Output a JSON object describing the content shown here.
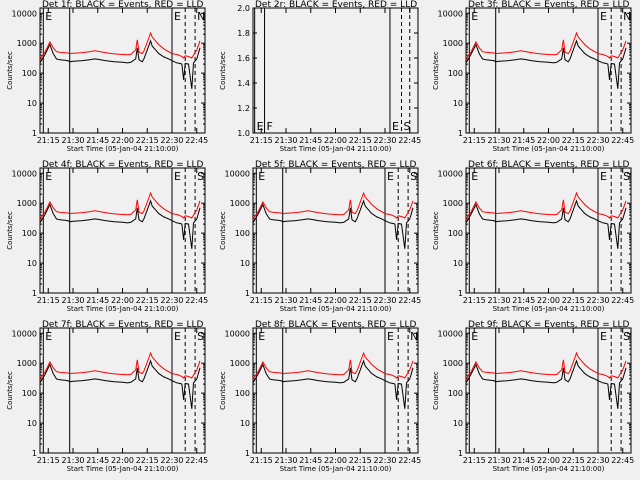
{
  "chart_data": {
    "type": "line",
    "layout": "3x3 grid of panels",
    "xlabel": "Start Time (05-Jan-04 21:10:00)",
    "x_tick_labels": [
      "21:15",
      "21:30",
      "21:45",
      "22:00",
      "22:15",
      "22:30",
      "22:45"
    ],
    "x_range": [
      "21:10",
      "22:50"
    ],
    "ylabel": "Counts/sec",
    "y_scale": "log",
    "y_tick_labels": [
      "1",
      "10",
      "100",
      "1000",
      "10000"
    ],
    "y_range": [
      1,
      15000
    ],
    "colors": {
      "events": "#000000",
      "lld": "#ff0000"
    },
    "panels": [
      {
        "title": "Det 1f: BLACK = Events, RED = LLD",
        "has_data": true,
        "vlines": [
          {
            "t": "21:12",
            "style": "solid",
            "label": "E"
          },
          {
            "t": "21:28",
            "style": "solid",
            "label": ""
          },
          {
            "t": "22:30",
            "style": "solid",
            "label": "E"
          },
          {
            "t": "22:38",
            "style": "dashed",
            "label": ""
          },
          {
            "t": "22:44",
            "style": "dashed",
            "label": "N"
          }
        ]
      },
      {
        "title": "Det 2r: BLACK = Events, RED = LLD",
        "has_data": false,
        "y_tick_labels": [
          "1.0",
          "1.2",
          "1.4",
          "1.6",
          "1.8",
          "2.0"
        ],
        "y_range": [
          1,
          2
        ],
        "vlines": [
          {
            "t": "21:11",
            "style": "solid",
            "label": "E"
          },
          {
            "t": "21:17",
            "style": "solid",
            "label": "F"
          },
          {
            "t": "22:33",
            "style": "solid",
            "label": "E"
          },
          {
            "t": "22:40",
            "style": "dashed",
            "label": "S"
          },
          {
            "t": "22:45",
            "style": "dashed",
            "label": ""
          }
        ]
      },
      {
        "title": "Det 3f: BLACK = Events, RED = LLD",
        "has_data": true,
        "vlines": [
          {
            "t": "21:12",
            "style": "solid",
            "label": "E"
          },
          {
            "t": "21:28",
            "style": "solid",
            "label": ""
          },
          {
            "t": "22:30",
            "style": "solid",
            "label": "E"
          },
          {
            "t": "22:38",
            "style": "dashed",
            "label": ""
          },
          {
            "t": "22:44",
            "style": "dashed",
            "label": "N"
          }
        ]
      },
      {
        "title": "Det 4f: BLACK = Events, RED = LLD",
        "has_data": true,
        "vlines": [
          {
            "t": "21:12",
            "style": "solid",
            "label": "E"
          },
          {
            "t": "21:28",
            "style": "solid",
            "label": ""
          },
          {
            "t": "22:30",
            "style": "solid",
            "label": "E"
          },
          {
            "t": "22:38",
            "style": "dashed",
            "label": ""
          },
          {
            "t": "22:44",
            "style": "dashed",
            "label": "S"
          }
        ]
      },
      {
        "title": "Det 5f: BLACK = Events, RED = LLD",
        "has_data": true,
        "vlines": [
          {
            "t": "21:12",
            "style": "solid",
            "label": "E"
          },
          {
            "t": "21:28",
            "style": "solid",
            "label": ""
          },
          {
            "t": "22:30",
            "style": "solid",
            "label": "E"
          },
          {
            "t": "22:38",
            "style": "dashed",
            "label": ""
          },
          {
            "t": "22:44",
            "style": "dashed",
            "label": "S"
          }
        ]
      },
      {
        "title": "Det 6f: BLACK = Events, RED = LLD",
        "has_data": true,
        "vlines": [
          {
            "t": "21:12",
            "style": "solid",
            "label": "E"
          },
          {
            "t": "21:28",
            "style": "solid",
            "label": ""
          },
          {
            "t": "22:30",
            "style": "solid",
            "label": "E"
          },
          {
            "t": "22:38",
            "style": "dashed",
            "label": ""
          },
          {
            "t": "22:44",
            "style": "dashed",
            "label": "S"
          }
        ]
      },
      {
        "title": "Det 7f: BLACK = Events, RED = LLD",
        "has_data": true,
        "vlines": [
          {
            "t": "21:12",
            "style": "solid",
            "label": "E"
          },
          {
            "t": "21:28",
            "style": "solid",
            "label": ""
          },
          {
            "t": "22:30",
            "style": "solid",
            "label": "E"
          },
          {
            "t": "22:38",
            "style": "dashed",
            "label": ""
          },
          {
            "t": "22:44",
            "style": "dashed",
            "label": "S"
          }
        ]
      },
      {
        "title": "Det 8f: BLACK = Events, RED = LLD",
        "has_data": true,
        "vlines": [
          {
            "t": "21:12",
            "style": "solid",
            "label": "E"
          },
          {
            "t": "21:28",
            "style": "solid",
            "label": ""
          },
          {
            "t": "22:30",
            "style": "solid",
            "label": "E"
          },
          {
            "t": "22:38",
            "style": "dashed",
            "label": ""
          },
          {
            "t": "22:44",
            "style": "dashed",
            "label": "N"
          }
        ]
      },
      {
        "title": "Det 9f: BLACK = Events, RED = LLD",
        "has_data": true,
        "vlines": [
          {
            "t": "21:12",
            "style": "solid",
            "label": "E"
          },
          {
            "t": "21:28",
            "style": "solid",
            "label": ""
          },
          {
            "t": "22:30",
            "style": "solid",
            "label": "E"
          },
          {
            "t": "22:38",
            "style": "dashed",
            "label": ""
          },
          {
            "t": "22:44",
            "style": "dashed",
            "label": "S"
          }
        ]
      }
    ],
    "series_profile": {
      "times": [
        "21:10",
        "21:13",
        "21:16",
        "21:18",
        "21:20",
        "21:22",
        "21:25",
        "21:27",
        "21:28",
        "21:30",
        "21:35",
        "21:40",
        "21:43",
        "21:45",
        "21:50",
        "21:55",
        "22:00",
        "22:03",
        "22:05",
        "22:08",
        "22:09",
        "22:10",
        "22:12",
        "22:13",
        "22:15",
        "22:17",
        "22:18",
        "22:20",
        "22:22",
        "22:25",
        "22:28",
        "22:30",
        "22:33",
        "22:35",
        "22:36",
        "22:37",
        "22:38",
        "22:40",
        "22:42",
        "22:43",
        "22:45",
        "22:47"
      ],
      "events": [
        220,
        420,
        900,
        450,
        300,
        280,
        270,
        260,
        240,
        250,
        260,
        280,
        300,
        290,
        260,
        240,
        230,
        220,
        230,
        300,
        700,
        280,
        240,
        300,
        600,
        1200,
        800,
        600,
        450,
        350,
        300,
        260,
        220,
        210,
        200,
        60,
        210,
        200,
        30,
        220,
        300,
        700
      ],
      "lld": [
        300,
        500,
        1100,
        700,
        520,
        500,
        480,
        470,
        450,
        460,
        480,
        520,
        560,
        540,
        480,
        440,
        420,
        410,
        420,
        600,
        1300,
        500,
        450,
        550,
        1100,
        2200,
        1600,
        1200,
        900,
        650,
        520,
        450,
        420,
        380,
        360,
        320,
        380,
        360,
        320,
        400,
        600,
        1200
      ]
    }
  }
}
